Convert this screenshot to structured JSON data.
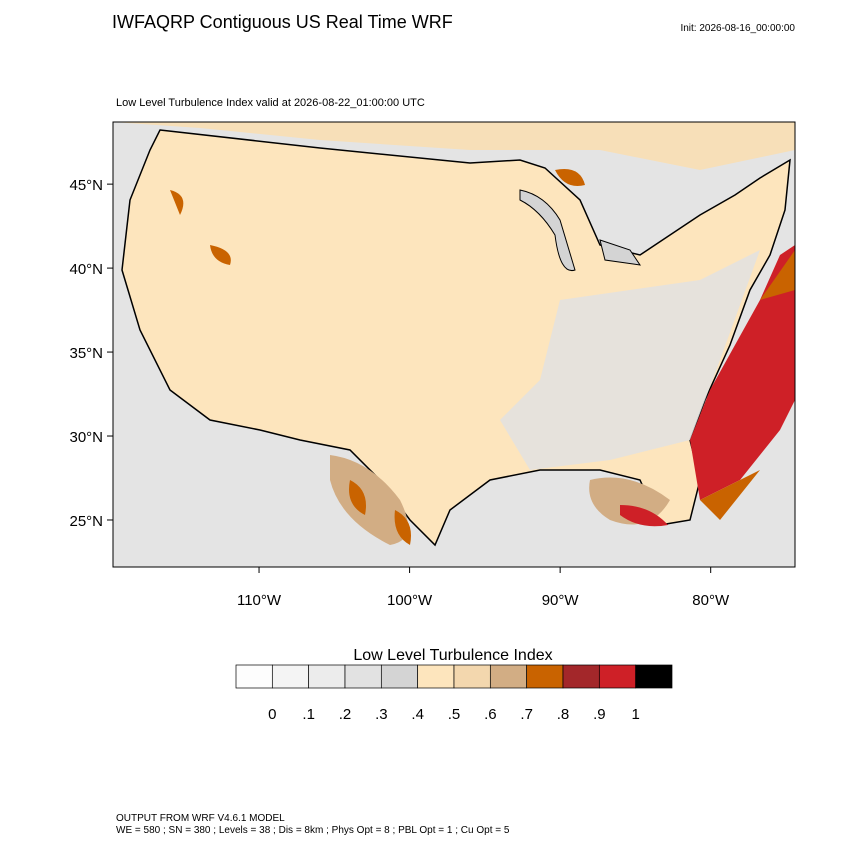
{
  "title": "IWFAQRP Contiguous US Real Time WRF",
  "init": "Init: 2026-08-16_00:00:00",
  "subtitle": "Low Level Turbulence Index valid at 2026-08-22_01:00:00 UTC",
  "map": {
    "lonlim": [
      -119.7,
      -74.4
    ],
    "latlim": [
      22.2,
      48.7
    ],
    "lat_ticks": [
      {
        "value": 45,
        "label": "45°N"
      },
      {
        "value": 40,
        "label": "40°N"
      },
      {
        "value": 35,
        "label": "35°N"
      },
      {
        "value": 30,
        "label": "30°N"
      },
      {
        "value": 25,
        "label": "25°N"
      }
    ],
    "lon_ticks": [
      {
        "value": -110,
        "label": "110°W"
      },
      {
        "value": -100,
        "label": "100°W"
      },
      {
        "value": -90,
        "label": "90°W"
      },
      {
        "value": -80,
        "label": "80°W"
      }
    ]
  },
  "colorbar": {
    "title": "Low Level Turbulence Index",
    "colors": [
      "#fdfdfd",
      "#f4f4f4",
      "#ececec",
      "#e2e2e2",
      "#d4d4d4",
      "#fde5bd",
      "#f3d7ae",
      "#d2ad84",
      "#c96300",
      "#a3272a",
      "#ce2027",
      "#000000"
    ],
    "ticks": [
      0,
      {
        "value": 0.1,
        "label": ".1"
      },
      {
        "value": 0.2,
        "label": ".2"
      },
      {
        "value": 0.3,
        "label": ".3"
      },
      {
        "value": 0.4,
        "label": ".4"
      },
      {
        "value": 0.5,
        "label": ".5"
      },
      {
        "value": 0.6,
        "label": ".6"
      },
      {
        "value": 0.7,
        "label": ".7"
      },
      {
        "value": 0.8,
        "label": ".8"
      },
      {
        "value": 0.9,
        "label": ".9"
      },
      1
    ]
  },
  "footer": [
    "OUTPUT FROM WRF V4.6.1 MODEL",
    "WE = 580 ; SN = 380 ; Levels = 38 ; Dis = 8km ; Phys Opt = 8 ; PBL Opt = 1 ; Cu Opt = 5"
  ]
}
